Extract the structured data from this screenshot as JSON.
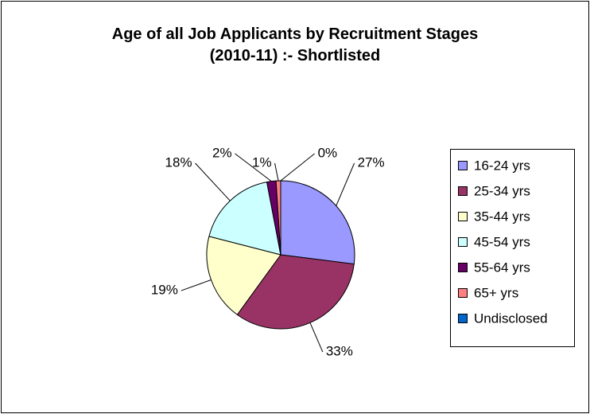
{
  "chart_data": {
    "type": "pie",
    "title": "Age of all Job Applicants by Recruitment Stages (2010-11) :- Shortlisted",
    "categories": [
      "16-24 yrs",
      "25-34 yrs",
      "35-44 yrs",
      "45-54 yrs",
      "55-64 yrs",
      "65+ yrs",
      "Undisclosed"
    ],
    "values": [
      27,
      33,
      19,
      18,
      2,
      1,
      0
    ],
    "value_labels": [
      "27%",
      "33%",
      "19%",
      "18%",
      "2%",
      "1%",
      "0%"
    ],
    "colors": [
      "#9999ff",
      "#993366",
      "#ffffcc",
      "#ccffff",
      "#660066",
      "#ff8080",
      "#0066cc"
    ],
    "legend": "right"
  }
}
